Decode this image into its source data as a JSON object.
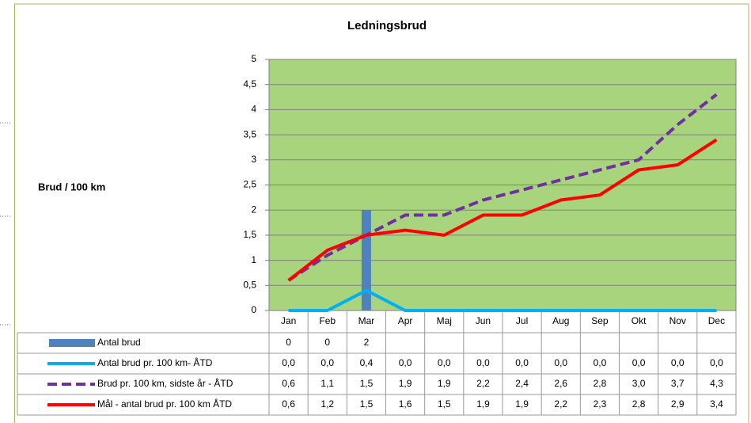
{
  "chart_data": {
    "type": "bar",
    "title": "Ledningsbrud",
    "y_label": "Brud / 100 km",
    "categories": [
      "Jan",
      "Feb",
      "Mar",
      "Apr",
      "Maj",
      "Jun",
      "Jul",
      "Aug",
      "Sep",
      "Okt",
      "Nov",
      "Dec"
    ],
    "ylim": [
      0,
      5
    ],
    "yticks": [
      0,
      {
        "value": 0.5,
        "label": "0,5"
      },
      1,
      {
        "value": 1.5,
        "label": "1,5"
      },
      2,
      {
        "value": 2.5,
        "label": "2,5"
      },
      3,
      {
        "value": 3.5,
        "label": "3,5"
      },
      4,
      {
        "value": 4.5,
        "label": "4,5"
      },
      5
    ],
    "grid": true,
    "plot_color": "#a9d47e",
    "series": [
      {
        "name": "Antal brud",
        "type": "bar",
        "color": "#4f81bd",
        "values": [
          0,
          0,
          2,
          null,
          null,
          null,
          null,
          null,
          null,
          null,
          null,
          null
        ]
      },
      {
        "name": "Antal brud pr. 100 km- ÅTD",
        "type": "line",
        "color": "#00b0f0",
        "values": [
          0,
          0,
          0.4,
          0,
          0,
          0,
          0,
          0,
          0,
          0,
          0,
          0
        ],
        "value_labels": [
          "0,0",
          "0,0",
          "0,4",
          "0,0",
          "0,0",
          "0,0",
          "0,0",
          "0,0",
          "0,0",
          "0,0",
          "0,0",
          "0,0"
        ]
      },
      {
        "name": "Brud pr. 100 km, sidste år - ÅTD",
        "type": "line",
        "dashed": true,
        "color": "#7030a0",
        "values": [
          0.6,
          1.1,
          1.5,
          1.9,
          1.9,
          2.2,
          2.4,
          2.6,
          2.8,
          3.0,
          3.7,
          4.3
        ],
        "value_labels": [
          "0,6",
          "1,1",
          "1,5",
          "1,9",
          "1,9",
          "2,2",
          "2,4",
          "2,6",
          "2,8",
          "3,0",
          "3,7",
          "4,3"
        ]
      },
      {
        "name": "Mål - antal brud pr. 100 km ÅTD",
        "type": "line",
        "color": "#ff0000",
        "values": [
          0.6,
          1.2,
          1.5,
          1.6,
          1.5,
          1.9,
          1.9,
          2.2,
          2.3,
          2.8,
          2.9,
          3.4
        ],
        "value_labels": [
          "0,6",
          "1,2",
          "1,5",
          "1,6",
          "1,5",
          "1,9",
          "1,9",
          "2,2",
          "2,3",
          "2,8",
          "2,9",
          "3,4"
        ]
      }
    ]
  }
}
